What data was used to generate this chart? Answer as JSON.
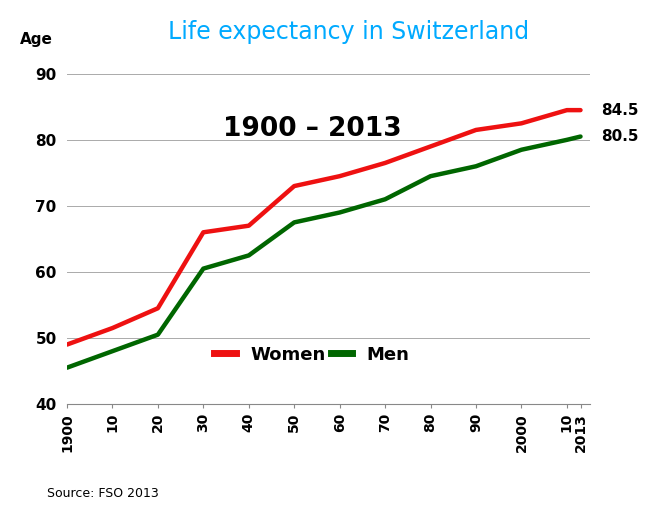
{
  "title": "Life expectancy in Switzerland",
  "subtitle": "1900 – 2013",
  "ylabel": "Age",
  "source": "Source: FSO 2013",
  "title_color": "#00AAFF",
  "background_color": "#FFFFFF",
  "plot_bg_color": "#FFFFFF",
  "x_labels": [
    "1900",
    "10",
    "20",
    "30",
    "40",
    "50",
    "60",
    "70",
    "80",
    "90",
    "2000",
    "10",
    "2013"
  ],
  "x_values": [
    1900,
    1910,
    1920,
    1930,
    1940,
    1950,
    1960,
    1970,
    1980,
    1990,
    2000,
    2010,
    2013
  ],
  "women_values": [
    49.0,
    51.5,
    54.5,
    66.0,
    67.0,
    73.0,
    74.5,
    76.5,
    79.0,
    81.5,
    82.5,
    84.5,
    84.5
  ],
  "men_values": [
    45.5,
    48.0,
    50.5,
    60.5,
    62.5,
    67.5,
    69.0,
    71.0,
    74.5,
    76.0,
    78.5,
    80.0,
    80.5
  ],
  "women_color": "#EE1111",
  "men_color": "#006600",
  "ylim": [
    40,
    92
  ],
  "yticks": [
    40,
    50,
    60,
    70,
    80,
    90
  ],
  "end_label_women": "84.5",
  "end_label_men": "80.5",
  "line_width": 3.2
}
